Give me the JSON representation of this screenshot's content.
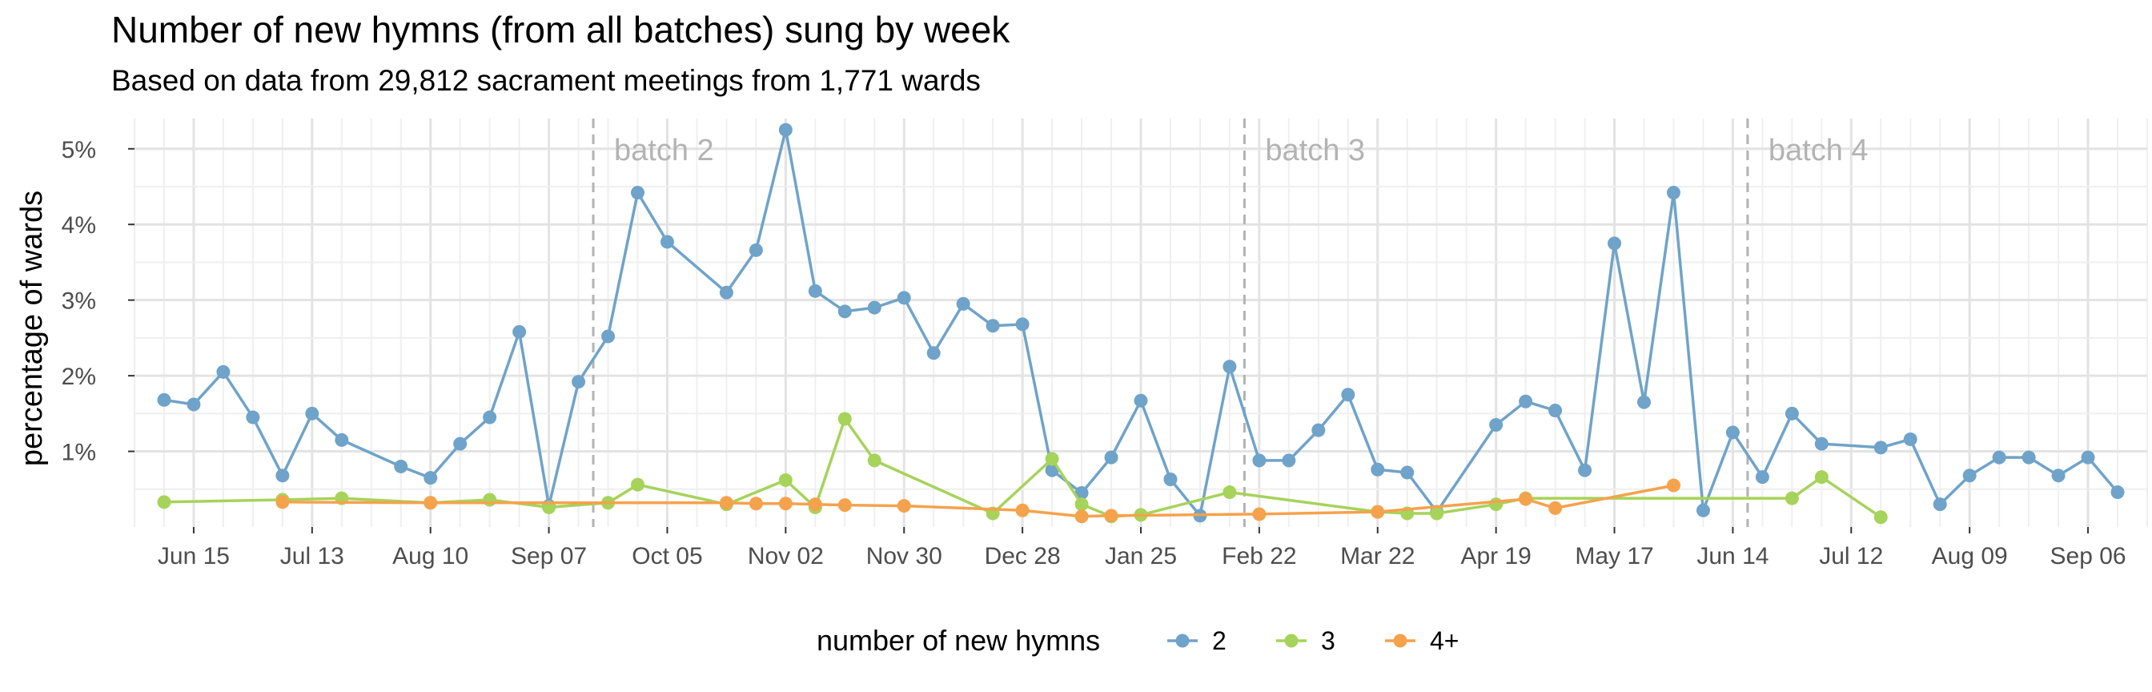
{
  "chart_data": {
    "type": "line",
    "title": "Number of new hymns (from all batches) sung by week",
    "subtitle": "Based on data from 29,812 sacrament meetings from 1,771 wards",
    "ylabel": "percentage of wards",
    "xlabel": "",
    "x_tick_labels": [
      "Jun 15",
      "Jul 13",
      "Aug 10",
      "Sep 07",
      "Oct 05",
      "Nov 02",
      "Nov 30",
      "Dec 28",
      "Jan 25",
      "Feb 22",
      "Mar 22",
      "Apr 19",
      "May 17",
      "Jun 14",
      "Jul 12",
      "Aug 09",
      "Sep 06"
    ],
    "y_tick_labels": [
      "1%",
      "2%",
      "3%",
      "4%",
      "5%"
    ],
    "y_ticks": [
      1,
      2,
      3,
      4,
      5
    ],
    "ylim": [
      0,
      5.4
    ],
    "x_week_range": [
      -2,
      66
    ],
    "legend": {
      "title": "number of new hymns",
      "position": "bottom"
    },
    "grid": true,
    "batches": [
      {
        "label": "batch 2",
        "week": 13.5
      },
      {
        "label": "batch 3",
        "week": 35.5
      },
      {
        "label": "batch 4",
        "week": 52.5
      }
    ],
    "series": [
      {
        "name": "2",
        "color": "#6fa3c9",
        "points": [
          [
            -1,
            1.68
          ],
          [
            0,
            1.62
          ],
          [
            1,
            2.05
          ],
          [
            2,
            1.45
          ],
          [
            3,
            0.68
          ],
          [
            4,
            1.5
          ],
          [
            5,
            1.15
          ],
          [
            7,
            0.8
          ],
          [
            8,
            0.65
          ],
          [
            9,
            1.1
          ],
          [
            10,
            1.45
          ],
          [
            11,
            2.58
          ],
          [
            12,
            0.28
          ],
          [
            13,
            1.92
          ],
          [
            14,
            2.52
          ],
          [
            15,
            4.42
          ],
          [
            16,
            3.77
          ],
          [
            18,
            3.1
          ],
          [
            19,
            3.66
          ],
          [
            20,
            5.25
          ],
          [
            21,
            3.12
          ],
          [
            22,
            2.85
          ],
          [
            23,
            2.9
          ],
          [
            24,
            3.03
          ],
          [
            25,
            2.3
          ],
          [
            26,
            2.95
          ],
          [
            27,
            2.66
          ],
          [
            28,
            2.68
          ],
          [
            29,
            0.75
          ],
          [
            30,
            0.45
          ],
          [
            31,
            0.92
          ],
          [
            32,
            1.67
          ],
          [
            33,
            0.63
          ],
          [
            34,
            0.15
          ],
          [
            35,
            2.12
          ],
          [
            36,
            0.88
          ],
          [
            37,
            0.88
          ],
          [
            38,
            1.28
          ],
          [
            39,
            1.75
          ],
          [
            40,
            0.76
          ],
          [
            41,
            0.72
          ],
          [
            42,
            0.2
          ],
          [
            44,
            1.35
          ],
          [
            45,
            1.66
          ],
          [
            46,
            1.54
          ],
          [
            47,
            0.75
          ],
          [
            48,
            3.75
          ],
          [
            49,
            1.65
          ],
          [
            50,
            4.42
          ],
          [
            51,
            0.22
          ],
          [
            52,
            1.25
          ],
          [
            53,
            0.66
          ],
          [
            54,
            1.5
          ],
          [
            55,
            1.1
          ],
          [
            57,
            1.05
          ],
          [
            58,
            1.16
          ],
          [
            59,
            0.3
          ],
          [
            60,
            0.68
          ],
          [
            61,
            0.92
          ],
          [
            62,
            0.92
          ],
          [
            63,
            0.68
          ],
          [
            64,
            0.92
          ],
          [
            65,
            0.46
          ]
        ]
      },
      {
        "name": "3",
        "color": "#a6d35a",
        "points": [
          [
            -1,
            0.33
          ],
          [
            3,
            0.36
          ],
          [
            5,
            0.38
          ],
          [
            8,
            0.32
          ],
          [
            10,
            0.36
          ],
          [
            12,
            0.26
          ],
          [
            14,
            0.32
          ],
          [
            15,
            0.56
          ],
          [
            18,
            0.3
          ],
          [
            20,
            0.62
          ],
          [
            21,
            0.26
          ],
          [
            22,
            1.43
          ],
          [
            23,
            0.88
          ],
          [
            27,
            0.18
          ],
          [
            29,
            0.9
          ],
          [
            30,
            0.3
          ],
          [
            31,
            0.14
          ],
          [
            32,
            0.16
          ],
          [
            35,
            0.46
          ],
          [
            40,
            0.2
          ],
          [
            41,
            0.18
          ],
          [
            42,
            0.18
          ],
          [
            44,
            0.3
          ],
          [
            45,
            0.38
          ],
          [
            54,
            0.38
          ],
          [
            55,
            0.66
          ],
          [
            57,
            0.13
          ]
        ]
      },
      {
        "name": "4+",
        "color": "#f5a24d",
        "points": [
          [
            3,
            0.33
          ],
          [
            8,
            0.32
          ],
          [
            18,
            0.32
          ],
          [
            19,
            0.31
          ],
          [
            20,
            0.31
          ],
          [
            21,
            0.3
          ],
          [
            22,
            0.29
          ],
          [
            24,
            0.28
          ],
          [
            28,
            0.22
          ],
          [
            30,
            0.14
          ],
          [
            31,
            0.15
          ],
          [
            36,
            0.17
          ],
          [
            40,
            0.2
          ],
          [
            45,
            0.37
          ],
          [
            46,
            0.25
          ],
          [
            50,
            0.55
          ]
        ]
      }
    ]
  }
}
